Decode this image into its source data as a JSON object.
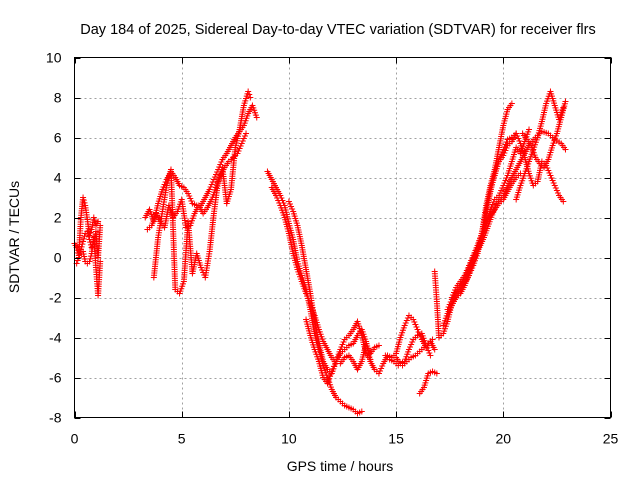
{
  "chart_data": {
    "type": "scatter",
    "title": "Day 184 of 2025, Sidereal Day-to-day VTEC variation (SDTVAR) for receiver flrs",
    "xlabel": "GPS time / hours",
    "ylabel": "SDTVAR / TECUs",
    "xlim": [
      0,
      25
    ],
    "ylim": [
      -8,
      10
    ],
    "xticks": [
      0,
      5,
      10,
      15,
      20,
      25
    ],
    "yticks": [
      -8,
      -6,
      -4,
      -2,
      0,
      2,
      4,
      6,
      8,
      10
    ],
    "xtick_labels": [
      "0",
      "5",
      "10",
      "15",
      "20",
      "25"
    ],
    "ytick_labels": [
      "-8",
      "-6",
      "-4",
      "-2",
      "0",
      "2",
      "4",
      "6",
      "8",
      "10"
    ],
    "grid": true,
    "legend": "none",
    "marker": "+",
    "color": "#ff0000",
    "series": [
      {
        "x": [
          0.0,
          0.1,
          0.2,
          0.3,
          0.4,
          0.5,
          0.6,
          0.7,
          0.8,
          0.9,
          1.0,
          1.1
        ],
        "y": [
          0.7,
          0.5,
          0.1,
          2.0,
          3.0,
          2.6,
          1.9,
          1.1,
          1.4,
          2.0,
          1.6,
          1.8
        ]
      },
      {
        "x": [
          0.1,
          0.2,
          0.3,
          0.4,
          0.5,
          0.6,
          0.7,
          0.8,
          0.9,
          1.0,
          1.1,
          1.2
        ],
        "y": [
          -0.3,
          0.0,
          0.4,
          0.8,
          1.2,
          1.3,
          0.9,
          0.5,
          0.8,
          1.3,
          0.0,
          1.6
        ]
      },
      {
        "x": [
          0.4,
          0.5,
          0.6,
          0.7,
          0.8,
          0.9,
          1.0,
          1.1,
          1.2
        ],
        "y": [
          0.3,
          -0.2,
          -0.3,
          -0.2,
          0.2,
          1.0,
          -0.5,
          -1.9,
          -0.2
        ]
      },
      {
        "x": [
          3.3,
          3.5,
          3.7,
          3.9,
          4.1,
          4.3,
          4.5,
          4.7,
          4.9,
          5.1,
          5.3,
          5.5,
          5.7,
          5.9,
          6.1,
          6.3,
          6.5,
          6.7,
          6.9,
          7.1,
          7.3,
          7.5,
          7.7,
          7.9,
          8.1,
          8.3,
          8.5
        ],
        "y": [
          2.0,
          2.4,
          1.8,
          2.7,
          3.4,
          3.9,
          4.3,
          4.0,
          3.6,
          3.5,
          3.2,
          2.7,
          2.6,
          2.6,
          3.0,
          3.4,
          3.9,
          4.4,
          4.9,
          5.2,
          5.6,
          6.0,
          6.3,
          6.6,
          7.2,
          7.6,
          7.0
        ]
      },
      {
        "x": [
          3.4,
          3.6,
          3.8,
          4.0,
          4.2,
          4.4,
          4.6,
          4.8,
          5.0,
          5.2,
          5.4,
          5.6,
          5.8,
          6.0,
          6.2,
          6.4,
          6.6,
          6.8,
          7.0,
          7.2,
          7.4,
          7.6,
          7.8,
          8.0
        ],
        "y": [
          1.4,
          1.6,
          2.2,
          1.8,
          1.5,
          2.6,
          2.0,
          2.3,
          2.9,
          1.5,
          1.6,
          2.2,
          2.6,
          2.2,
          2.5,
          2.9,
          3.5,
          4.1,
          4.5,
          4.8,
          5.0,
          5.2,
          5.7,
          6.2
        ]
      },
      {
        "x": [
          3.7,
          3.9,
          4.1,
          4.3,
          4.5,
          4.7,
          4.9,
          5.1,
          5.3,
          5.5,
          5.7,
          5.9,
          6.1,
          6.3,
          6.5,
          6.7,
          6.9,
          7.1,
          7.3,
          7.5,
          7.7,
          7.9,
          8.1,
          8.2
        ],
        "y": [
          -1.0,
          1.0,
          2.3,
          3.6,
          4.4,
          -1.6,
          -1.8,
          -1.2,
          1.8,
          -0.8,
          0.2,
          -0.5,
          -1.0,
          0.3,
          2.2,
          3.8,
          4.5,
          2.7,
          3.4,
          5.5,
          6.4,
          7.6,
          8.3,
          8.0
        ]
      },
      {
        "x": [
          9.0,
          9.2,
          9.4,
          9.6,
          9.8,
          10.0,
          10.2,
          10.4,
          10.6,
          10.8,
          11.0,
          11.2,
          11.4,
          11.6,
          11.8,
          12.0,
          12.2,
          12.4,
          12.6,
          12.8,
          13.0,
          13.2,
          13.4
        ],
        "y": [
          4.3,
          3.9,
          3.5,
          3.1,
          2.6,
          1.7,
          0.9,
          -0.2,
          -0.9,
          -1.6,
          -2.6,
          -3.8,
          -4.6,
          -5.4,
          -6.0,
          -6.6,
          -7.0,
          -7.2,
          -7.4,
          -7.5,
          -7.6,
          -7.8,
          -7.7
        ]
      },
      {
        "x": [
          9.2,
          9.4,
          9.6,
          9.8,
          10.0,
          10.2,
          10.4,
          10.6,
          10.8,
          11.0,
          11.2,
          11.4,
          11.6,
          11.8,
          12.0,
          12.2,
          12.4,
          12.6,
          12.8,
          13.0,
          13.2,
          13.4,
          13.6,
          13.8,
          14.0,
          14.2
        ],
        "y": [
          3.5,
          3.1,
          2.6,
          2.0,
          1.2,
          0.2,
          -0.6,
          -1.2,
          -1.8,
          -2.3,
          -2.9,
          -3.6,
          -4.2,
          -4.6,
          -5.0,
          -5.3,
          -5.3,
          -5.0,
          -4.9,
          -5.2,
          -5.6,
          -5.2,
          -4.3,
          -4.8,
          -4.5,
          -4.4
        ]
      },
      {
        "x": [
          10.0,
          10.2,
          10.4,
          10.6,
          10.8,
          11.0,
          11.2,
          11.4,
          11.6,
          11.8,
          12.0,
          12.2,
          12.4,
          12.6,
          12.8,
          13.0,
          13.2,
          13.4,
          13.6,
          13.8
        ],
        "y": [
          2.8,
          2.3,
          1.6,
          0.6,
          -0.6,
          -1.8,
          -3.2,
          -4.3,
          -5.2,
          -5.6,
          -5.8,
          -5.2,
          -4.6,
          -4.1,
          -3.9,
          -3.6,
          -3.2,
          -3.9,
          -4.8,
          -5.1
        ]
      },
      {
        "x": [
          10.8,
          11.0,
          11.2,
          11.4,
          11.6,
          11.8,
          12.0,
          12.2,
          12.4,
          12.6,
          12.8,
          13.0,
          13.2,
          13.4,
          13.6,
          13.8,
          14.0,
          14.2
        ],
        "y": [
          -3.1,
          -3.9,
          -4.6,
          -5.2,
          -6.0,
          -6.3,
          -5.7,
          -5.2,
          -4.8,
          -4.6,
          -4.4,
          -4.3,
          -3.9,
          -3.6,
          -4.2,
          -5.2,
          -5.6,
          -5.8
        ]
      },
      {
        "x": [
          14.2,
          14.4,
          14.6,
          14.8,
          15.0,
          15.2,
          15.4,
          15.6,
          15.8,
          16.0,
          16.2,
          16.4,
          16.6,
          16.8
        ],
        "y": [
          -5.8,
          -5.3,
          -4.9,
          -5.0,
          -4.8,
          -4.0,
          -3.4,
          -2.9,
          -3.1,
          -3.6,
          -4.1,
          -4.5,
          -4.2,
          -4.6
        ]
      },
      {
        "x": [
          14.5,
          14.7,
          14.9,
          15.1,
          15.3,
          15.5,
          15.7,
          15.9,
          16.1,
          16.3,
          16.5,
          16.7
        ],
        "y": [
          -4.9,
          -5.1,
          -5.2,
          -5.4,
          -5.4,
          -5.2,
          -5.0,
          -4.9,
          -4.7,
          -4.5,
          -4.3,
          -4.1
        ]
      },
      {
        "x": [
          15.0,
          15.2,
          15.4,
          15.6,
          15.8,
          16.0,
          16.2,
          16.4,
          16.6
        ],
        "y": [
          -5.0,
          -5.3,
          -5.2,
          -4.6,
          -4.1,
          -3.9,
          -3.8,
          -4.4,
          -4.9
        ]
      },
      {
        "x": [
          16.1,
          16.3,
          16.5,
          16.7,
          16.9
        ],
        "y": [
          -6.8,
          -6.5,
          -5.8,
          -5.7,
          -5.8
        ]
      },
      {
        "x": [
          16.8,
          16.9,
          17.0,
          17.2,
          17.4,
          17.6,
          17.8,
          18.0,
          18.2,
          18.4,
          18.6,
          18.8,
          19.0,
          19.2,
          19.4,
          19.6,
          19.8,
          20.0,
          20.2,
          20.4
        ],
        "y": [
          -0.7,
          -2.2,
          -4.0,
          -3.8,
          -3.2,
          -2.3,
          -1.8,
          -1.6,
          -1.3,
          -0.9,
          -0.4,
          0.2,
          1.2,
          2.6,
          3.6,
          4.4,
          5.5,
          6.6,
          7.4,
          7.7
        ]
      },
      {
        "x": [
          17.2,
          17.4,
          17.6,
          17.8,
          18.0,
          18.2,
          18.4,
          18.6,
          18.8,
          19.0,
          19.2,
          19.4,
          19.6,
          19.8,
          20.0,
          20.2,
          20.4,
          20.6
        ],
        "y": [
          -3.4,
          -2.8,
          -2.4,
          -2.0,
          -1.6,
          -1.1,
          -0.6,
          -0.1,
          0.6,
          1.2,
          2.2,
          3.3,
          4.2,
          4.8,
          5.1,
          5.6,
          5.8,
          6.2
        ]
      },
      {
        "x": [
          17.4,
          17.6,
          17.8,
          18.0,
          18.2,
          18.4,
          18.6,
          18.8,
          19.0,
          19.2,
          19.4,
          19.6,
          19.8,
          20.0,
          20.2,
          20.4,
          20.6,
          20.8,
          21.0,
          21.2
        ],
        "y": [
          -2.6,
          -2.1,
          -1.8,
          -1.4,
          -1.0,
          -0.5,
          0.0,
          0.5,
          1.0,
          1.6,
          2.4,
          2.9,
          3.1,
          3.6,
          4.1,
          4.8,
          5.5,
          5.2,
          5.8,
          6.4
        ]
      },
      {
        "x": [
          17.6,
          17.8,
          18.0,
          18.2,
          18.4,
          18.6,
          18.8,
          19.0,
          19.2,
          19.4,
          19.6,
          19.8,
          20.0,
          20.2,
          20.4,
          20.6,
          20.8
        ],
        "y": [
          -2.0,
          -1.5,
          -1.2,
          -0.9,
          -0.4,
          0.1,
          0.6,
          1.2,
          1.7,
          2.1,
          2.4,
          2.7,
          2.9,
          3.3,
          3.7,
          4.0,
          4.2
        ]
      },
      {
        "x": [
          17.8,
          18.0,
          18.2,
          18.4,
          18.6,
          18.8,
          19.0,
          19.2,
          19.4,
          19.6,
          19.8,
          20.0,
          20.2,
          20.4,
          20.6,
          20.8,
          21.0,
          21.2,
          21.4,
          21.6,
          21.8,
          22.0,
          22.2,
          22.4,
          22.6,
          22.8
        ],
        "y": [
          -2.0,
          -1.8,
          -1.4,
          -0.8,
          -0.2,
          0.4,
          1.1,
          2.3,
          3.4,
          4.1,
          4.9,
          5.4,
          5.9,
          6.0,
          6.2,
          5.7,
          5.0,
          4.2,
          3.6,
          3.8,
          4.8,
          4.6,
          4.1,
          3.6,
          3.1,
          2.8
        ]
      },
      {
        "x": [
          18.5,
          18.8,
          19.1,
          19.4,
          19.7,
          20.0,
          20.3,
          20.6,
          20.9,
          21.2,
          21.5,
          21.8,
          22.1,
          22.4,
          22.7,
          22.9
        ],
        "y": [
          -0.4,
          0.3,
          1.0,
          1.9,
          2.7,
          3.1,
          3.8,
          4.4,
          5.0,
          5.6,
          6.0,
          6.3,
          6.2,
          5.9,
          5.7,
          5.4
        ]
      },
      {
        "x": [
          20.6,
          20.8,
          21.0,
          21.2,
          21.4,
          21.6,
          21.8,
          22.0,
          22.2,
          22.4,
          22.6,
          22.8
        ],
        "y": [
          2.9,
          3.6,
          4.2,
          4.8,
          5.4,
          6.0,
          6.8,
          7.7,
          8.3,
          7.6,
          6.9,
          7.5
        ]
      },
      {
        "x": [
          20.9,
          21.1,
          21.3,
          21.5,
          21.7,
          21.9,
          22.1,
          22.3,
          22.5,
          22.7,
          22.9
        ],
        "y": [
          6.2,
          5.9,
          5.6,
          5.0,
          4.7,
          4.5,
          4.9,
          5.6,
          6.2,
          7.0,
          7.8
        ]
      }
    ]
  }
}
